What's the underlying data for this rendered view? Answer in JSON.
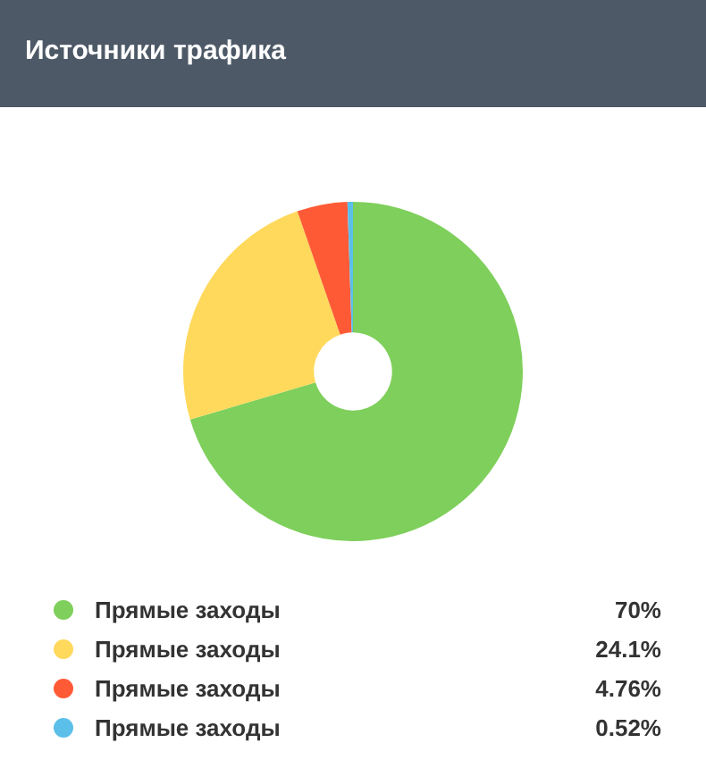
{
  "chart_data": {
    "type": "donut",
    "title": "Источники трафика",
    "categories": [
      "Прямые заходы",
      "Прямые заходы",
      "Прямые заходы",
      "Прямые заходы"
    ],
    "values": [
      70,
      24.1,
      4.76,
      0.52
    ],
    "value_labels": [
      "70%",
      "24.1%",
      "4.76%",
      "0.52%"
    ],
    "colors": [
      "#7ecf5b",
      "#ffd95c",
      "#ff5a36",
      "#5bbfea"
    ],
    "legend": "bottom"
  }
}
